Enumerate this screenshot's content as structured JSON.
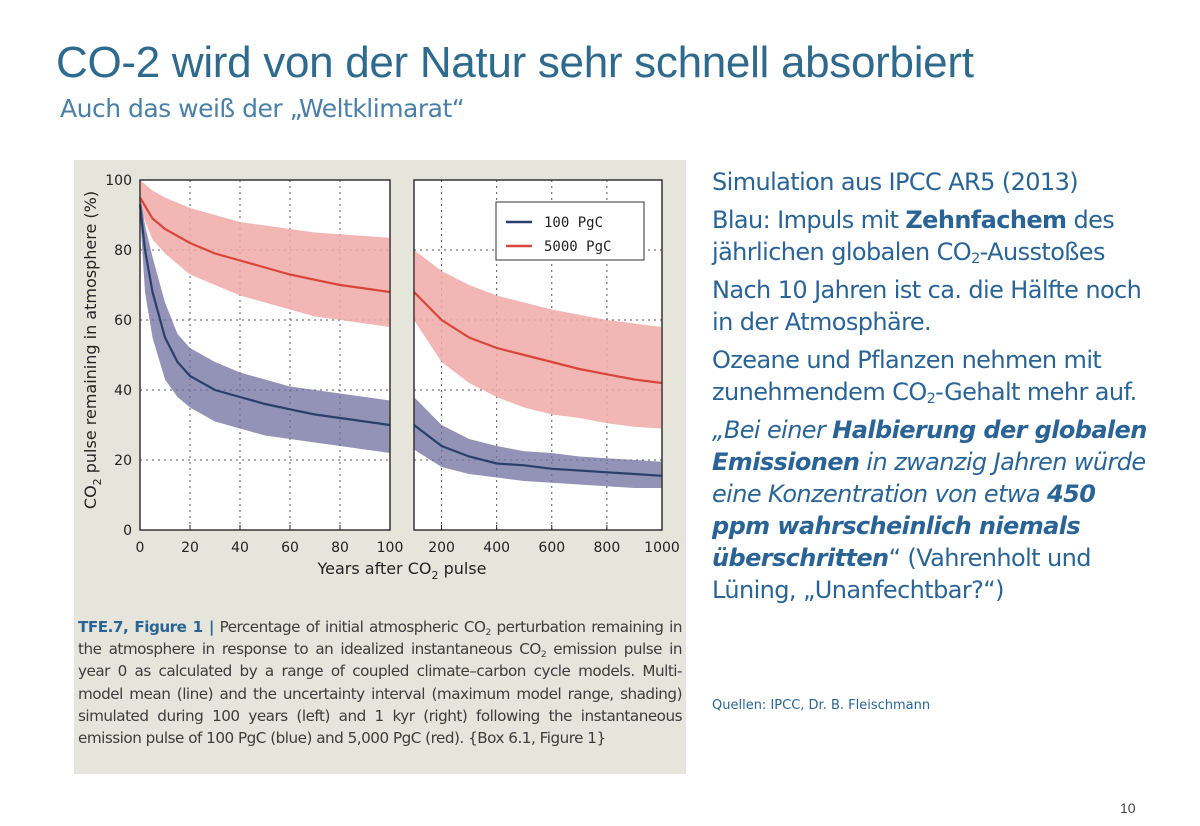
{
  "slide": {
    "title": "CO-2 wird von der Natur sehr schnell absorbiert",
    "subtitle": "Auch das weiß der „Weltklimarat“",
    "page_number": "10",
    "sources": "Quellen: IPCC, Dr. B. Fleischmann"
  },
  "text": {
    "p1": "Simulation aus IPCC AR5 (2013)",
    "p2_a": "Blau: Impuls mit ",
    "p2_b": "Zehnfachem",
    "p2_c": " des jährlichen globalen CO",
    "p2_sub": "2",
    "p2_d": "-Ausstoßes",
    "p3": "Nach 10 Jahren ist ca. die Hälfte noch in der Atmosphäre.",
    "p4_a": "Ozeane und Pflanzen nehmen mit zunehmendem CO",
    "p4_sub": "2",
    "p4_b": "-Gehalt mehr auf.",
    "q_a": "„Bei einer ",
    "q_b": "Halbierung der globalen Emissionen",
    "q_c": " in zwanzig Jahren würde eine Konzentration von etwa ",
    "q_d": "450 ppm wahrscheinlich niemals überschritten",
    "q_e": "“ (Vahrenholt und Lüning, „Unanfechtbar?“)"
  },
  "figure": {
    "caption_label": "TFE.7, Figure 1 |",
    "caption_a": " Percentage of initial atmospheric CO",
    "caption_sub1": "2",
    "caption_b": " perturbation remaining in the atmosphere in response to an idealized instantaneous CO",
    "caption_sub2": "2",
    "caption_c": " emission pulse in year 0 as calculated by a range of coupled climate–carbon cycle models. Multi-model mean (line) and the uncertainty interval (maximum model range, shading) simulated during 100 years (left) and 1 kyr (right) following the instantaneous emission pulse of 100 PgC (blue) and 5,000 PgC (red). {Box 6.1, Figure 1}"
  },
  "chart_data": {
    "type": "line",
    "ylabel_a": "CO",
    "ylabel_sub": "2",
    "ylabel_b": " pulse remaining in atmosphere (%)",
    "xlabel_a": "Years after CO",
    "xlabel_sub": "2",
    "xlabel_b": " pulse",
    "ylim": [
      0,
      100
    ],
    "yticks": [
      "0",
      "20",
      "40",
      "60",
      "80",
      "100"
    ],
    "legend": [
      "100 PgC",
      "5000 PgC"
    ],
    "colors": {
      "blue": "#2b3f6b",
      "blue_band": "#6d6f9e",
      "red": "#d9453a",
      "red_band": "#f0aaa8"
    },
    "panels": [
      {
        "xlim": [
          0,
          100
        ],
        "xticks": [
          "0",
          "20",
          "40",
          "60",
          "80",
          "100"
        ],
        "series": [
          {
            "name": "100 PgC",
            "x": [
              0,
              2,
              5,
              10,
              15,
              20,
              30,
              40,
              50,
              60,
              70,
              80,
              90,
              100
            ],
            "mean": [
              93,
              80,
              68,
              55,
              48,
              44,
              40,
              38,
              36,
              34.5,
              33,
              32,
              31,
              30
            ],
            "lower": [
              90,
              68,
              55,
              43,
              38,
              35,
              31,
              29,
              27,
              26,
              25,
              24,
              23,
              22
            ],
            "upper": [
              96,
              87,
              78,
              65,
              56,
              52,
              48,
              45,
              43,
              41,
              40,
              39,
              38,
              37
            ]
          },
          {
            "name": "5000 PgC",
            "x": [
              0,
              5,
              10,
              20,
              30,
              40,
              50,
              60,
              70,
              80,
              90,
              100
            ],
            "mean": [
              95,
              89,
              86,
              82,
              79,
              77,
              75,
              73,
              71.5,
              70,
              69,
              68
            ],
            "lower": [
              92,
              83,
              79,
              73,
              70,
              67,
              65,
              63,
              61,
              60,
              59,
              58
            ],
            "upper": [
              100,
              97,
              95,
              92,
              90,
              88,
              87,
              86,
              85,
              84.5,
              84,
              83.5
            ]
          }
        ]
      },
      {
        "xlim": [
          100,
          1000
        ],
        "xticks": [
          "200",
          "400",
          "600",
          "800",
          "1000"
        ],
        "series": [
          {
            "name": "100 PgC",
            "x": [
              100,
              200,
              300,
              400,
              500,
              600,
              700,
              800,
              900,
              1000
            ],
            "mean": [
              30,
              24,
              21,
              19,
              18.5,
              17.5,
              17,
              16.5,
              16,
              15.5
            ],
            "lower": [
              23,
              18,
              16,
              15,
              14,
              13.5,
              13,
              12.5,
              12,
              12
            ],
            "upper": [
              38,
              30,
              26,
              24,
              22.5,
              22,
              21,
              20.5,
              20,
              19.5
            ]
          },
          {
            "name": "5000 PgC",
            "x": [
              100,
              200,
              300,
              400,
              500,
              600,
              700,
              800,
              900,
              1000
            ],
            "mean": [
              68,
              60,
              55,
              52,
              50,
              48,
              46,
              44.5,
              43,
              42
            ],
            "lower": [
              60,
              48,
              42,
              38,
              35,
              33,
              32,
              30.5,
              29.5,
              29
            ],
            "upper": [
              80,
              74,
              70,
              67,
              65,
              63,
              61.5,
              60,
              59,
              58
            ]
          }
        ]
      }
    ]
  }
}
